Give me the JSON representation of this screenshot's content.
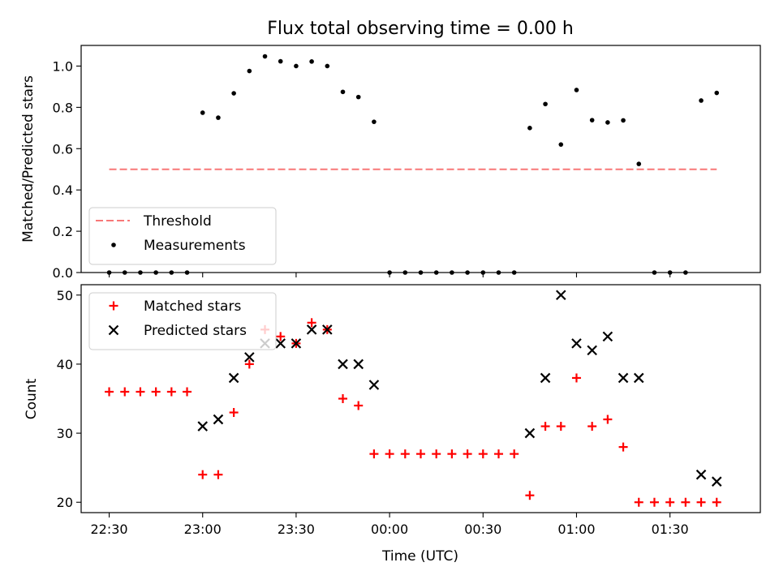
{
  "title": "Flux total observing time = 0.00 h",
  "xlabel": "Time (UTC)",
  "chart_data": [
    {
      "type": "scatter",
      "ylabel": "Matched/Predicted stars",
      "ylim": [
        0,
        1.1
      ],
      "yticks": [
        "0.0",
        "0.2",
        "0.4",
        "0.6",
        "0.8",
        "1.0"
      ],
      "xlim": [
        "22:21",
        "01:59"
      ],
      "xticks": [
        "22:30",
        "23:00",
        "23:30",
        "00:00",
        "00:30",
        "01:00",
        "01:30"
      ],
      "tick_labels_shown": false,
      "legend_position": "lower-left",
      "threshold": {
        "name": "Threshold",
        "value": 0.5,
        "x_start": "22:30",
        "x_end": "01:45",
        "color": "#f87878"
      },
      "series": [
        {
          "name": "Measurements",
          "color": "#000000",
          "marker": "dot",
          "x": [
            "22:30",
            "22:35",
            "22:40",
            "22:45",
            "22:50",
            "22:55",
            "23:00",
            "23:05",
            "23:10",
            "23:15",
            "23:20",
            "23:25",
            "23:30",
            "23:35",
            "23:40",
            "23:45",
            "23:50",
            "23:55",
            "00:00",
            "00:05",
            "00:10",
            "00:15",
            "00:20",
            "00:25",
            "00:30",
            "00:35",
            "00:40",
            "00:45",
            "00:50",
            "00:55",
            "01:00",
            "01:05",
            "01:10",
            "01:15",
            "01:20",
            "01:25",
            "01:30",
            "01:35",
            "01:40",
            "01:45"
          ],
          "y": [
            0,
            0,
            0,
            0,
            0,
            0,
            0.774,
            0.75,
            0.868,
            0.976,
            1.047,
            1.023,
            1.0,
            1.022,
            1.0,
            0.875,
            0.85,
            0.73,
            0,
            0,
            0,
            0,
            0,
            0,
            0,
            0,
            0,
            0.7,
            0.816,
            0.62,
            0.884,
            0.738,
            0.727,
            0.737,
            0.526,
            0,
            0,
            0,
            0.833,
            0.87
          ]
        }
      ]
    },
    {
      "type": "scatter",
      "ylabel": "Count",
      "ylim": [
        18.5,
        51.5
      ],
      "yticks": [
        "20",
        "30",
        "40",
        "50"
      ],
      "xlim": [
        "22:21",
        "01:59"
      ],
      "xticks": [
        "22:30",
        "23:00",
        "23:30",
        "00:00",
        "00:30",
        "01:00",
        "01:30"
      ],
      "legend_position": "upper-left",
      "series": [
        {
          "name": "Matched stars",
          "color": "#ff0000",
          "marker": "plus",
          "x": [
            "22:30",
            "22:35",
            "22:40",
            "22:45",
            "22:50",
            "22:55",
            "23:00",
            "23:05",
            "23:10",
            "23:15",
            "23:20",
            "23:25",
            "23:30",
            "23:35",
            "23:40",
            "23:45",
            "23:50",
            "23:55",
            "00:00",
            "00:05",
            "00:10",
            "00:15",
            "00:20",
            "00:25",
            "00:30",
            "00:35",
            "00:40",
            "00:45",
            "00:50",
            "00:55",
            "01:00",
            "01:05",
            "01:10",
            "01:15",
            "01:20",
            "01:25",
            "01:30",
            "01:35",
            "01:40",
            "01:45"
          ],
          "y": [
            36,
            36,
            36,
            36,
            36,
            36,
            24,
            24,
            33,
            40,
            45,
            44,
            43,
            46,
            45,
            35,
            34,
            27,
            27,
            27,
            27,
            27,
            27,
            27,
            27,
            27,
            27,
            21,
            31,
            31,
            38,
            31,
            32,
            28,
            20,
            20,
            20,
            20,
            20,
            20
          ]
        },
        {
          "name": "Predicted stars",
          "color": "#000000",
          "marker": "x",
          "x": [
            "23:00",
            "23:05",
            "23:10",
            "23:15",
            "23:20",
            "23:25",
            "23:30",
            "23:35",
            "23:40",
            "23:45",
            "23:50",
            "23:55",
            "00:45",
            "00:50",
            "00:55",
            "01:00",
            "01:05",
            "01:10",
            "01:15",
            "01:20",
            "01:40",
            "01:45"
          ],
          "y": [
            31,
            32,
            38,
            41,
            43,
            43,
            43,
            45,
            45,
            40,
            40,
            37,
            30,
            38,
            50,
            43,
            42,
            44,
            38,
            38,
            24,
            23
          ]
        }
      ]
    }
  ]
}
